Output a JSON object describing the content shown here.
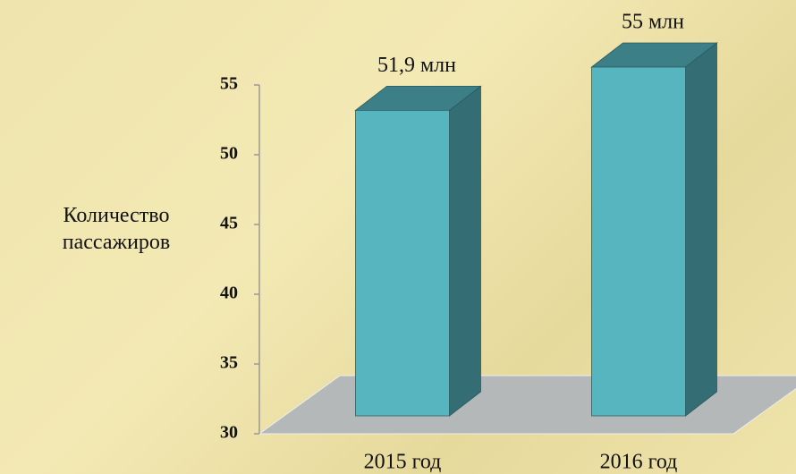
{
  "chart_data": {
    "type": "bar3d",
    "y_label": "Количество пассажиров",
    "categories": [
      "2015 год",
      "2016 год"
    ],
    "values": [
      51.9,
      55
    ],
    "value_labels": [
      "51,9 млн",
      "55 млн"
    ],
    "color": "#56b5bf",
    "ylim": [
      30,
      55
    ],
    "yticks": [
      30,
      35,
      40,
      45,
      50,
      55
    ]
  }
}
